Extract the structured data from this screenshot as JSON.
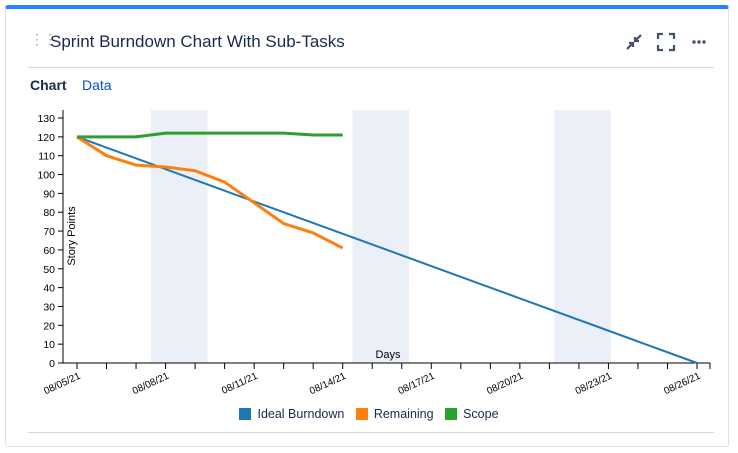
{
  "header": {
    "title": "Sprint Burndown Chart With Sub-Tasks",
    "icons": [
      "collapse-icon",
      "fullscreen-icon",
      "more-icon"
    ]
  },
  "tabs": [
    {
      "label": "Chart",
      "active": true
    },
    {
      "label": "Data",
      "active": false
    }
  ],
  "colors": {
    "accent": "#2684ff",
    "ideal": "#1f77b4",
    "remaining": "#ff7f0e",
    "scope": "#2ca02c",
    "non_working": "#ebf0f8"
  },
  "chart_data": {
    "type": "line",
    "xlabel": "Days",
    "ylabel": "Story Points",
    "ylim": [
      0,
      130
    ],
    "yticks": [
      0,
      10,
      20,
      30,
      40,
      50,
      60,
      70,
      80,
      90,
      100,
      110,
      120,
      130
    ],
    "xlim": [
      "08/05/21",
      "08/26/21"
    ],
    "xtick_labels": [
      "08/05/21",
      "08/08/21",
      "08/11/21",
      "08/14/21",
      "08/17/21",
      "08/20/21",
      "08/23/21",
      "08/26/21"
    ],
    "non_working_periods": [
      [
        "08/07/21 12:00",
        "08/09/21 10:00"
      ],
      [
        "08/14/21 08:00",
        "08/16/21 06:00"
      ],
      [
        "08/21/21 04:00",
        "08/23/21 02:00"
      ]
    ],
    "grid": false,
    "legend_position": "bottom",
    "series": [
      {
        "name": "Ideal Burndown",
        "x": [
          "08/05/21",
          "08/26/21"
        ],
        "values": [
          120,
          0
        ]
      },
      {
        "name": "Remaining",
        "x": [
          "08/05/21",
          "08/06/21",
          "08/07/21",
          "08/08/21",
          "08/09/21",
          "08/10/21",
          "08/11/21",
          "08/12/21",
          "08/13/21",
          "08/14/21"
        ],
        "values": [
          120,
          110,
          105,
          104,
          102,
          96,
          85,
          74,
          69,
          61
        ]
      },
      {
        "name": "Scope",
        "x": [
          "08/05/21",
          "08/06/21",
          "08/07/21",
          "08/08/21",
          "08/09/21",
          "08/10/21",
          "08/11/21",
          "08/12/21",
          "08/13/21",
          "08/14/21"
        ],
        "values": [
          120,
          120,
          120,
          122,
          122,
          122,
          122,
          122,
          121,
          121
        ]
      }
    ]
  }
}
